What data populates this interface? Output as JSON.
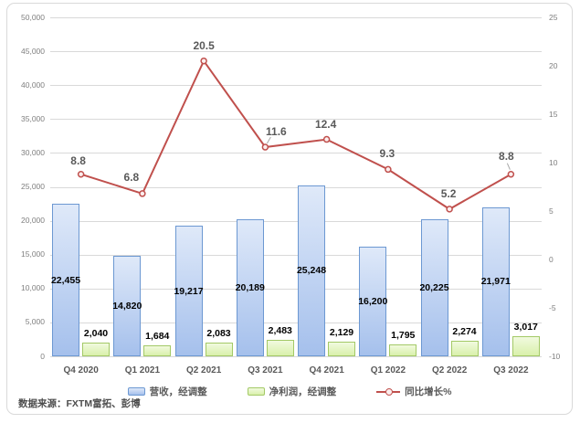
{
  "chart_data": {
    "type": "combo-bar-line",
    "categories": [
      "Q4 2020",
      "Q1 2021",
      "Q2 2021",
      "Q3 2021",
      "Q4 2021",
      "Q1 2022",
      "Q2 2022",
      "Q3 2022"
    ],
    "series": [
      {
        "name": "营收，经调整",
        "type": "bar",
        "axis": "left",
        "values": [
          22455,
          14820,
          19217,
          20189,
          25248,
          16200,
          20225,
          21971
        ],
        "labels": [
          "22,455",
          "14,820",
          "19,217",
          "20,189",
          "25,248",
          "16,200",
          "20,225",
          "21,971"
        ]
      },
      {
        "name": "净利润，经调整",
        "type": "bar",
        "axis": "left",
        "values": [
          2040,
          1684,
          2083,
          2483,
          2129,
          1795,
          2274,
          3017
        ],
        "labels": [
          "2,040",
          "1,684",
          "2,083",
          "2,483",
          "2,129",
          "1,795",
          "2,274",
          "3,017"
        ]
      },
      {
        "name": "同比增长%",
        "type": "line",
        "axis": "right",
        "values": [
          8.8,
          6.8,
          20.5,
          11.6,
          12.4,
          9.3,
          5.2,
          8.8
        ],
        "labels": [
          "8.8",
          "6.8",
          "20.5",
          "11.6",
          "12.4",
          "9.3",
          "5.2",
          "8.8"
        ]
      }
    ],
    "left_axis": {
      "min": 0,
      "max": 50000,
      "step": 5000,
      "ticks": [
        "0",
        "5,000",
        "10,000",
        "15,000",
        "20,000",
        "25,000",
        "30,000",
        "35,000",
        "40,000",
        "45,000",
        "50,000"
      ]
    },
    "right_axis": {
      "min": -10,
      "max": 25,
      "step": 5,
      "ticks": [
        "-10",
        "-5",
        "0",
        "5",
        "10",
        "15",
        "20",
        "25"
      ]
    },
    "grid": true,
    "legend_position": "bottom"
  },
  "legend": {
    "items": [
      {
        "label": "营收，经调整",
        "swatch": "revenue-bar-swatch"
      },
      {
        "label": "净利润，经调整",
        "swatch": "profit-bar-swatch"
      },
      {
        "label": "同比增长%",
        "swatch": "growth-line-swatch"
      }
    ]
  },
  "source_note": "数据来源：FXTM富拓、彭博",
  "colors": {
    "revenue_fill_top": "#dfe9f9",
    "revenue_fill_bottom": "#a5c0ec",
    "revenue_border": "#6c98d2",
    "profit_fill_top": "#f1fadf",
    "profit_fill_bottom": "#d9f0ab",
    "profit_border": "#a3c966",
    "growth_line": "#c0504d",
    "gridline": "#d9d9d9",
    "axis_text": "#7f7f7f",
    "category_text": "#595959",
    "bar_label_text": "#000000",
    "source_text": "#4d4d4d"
  }
}
